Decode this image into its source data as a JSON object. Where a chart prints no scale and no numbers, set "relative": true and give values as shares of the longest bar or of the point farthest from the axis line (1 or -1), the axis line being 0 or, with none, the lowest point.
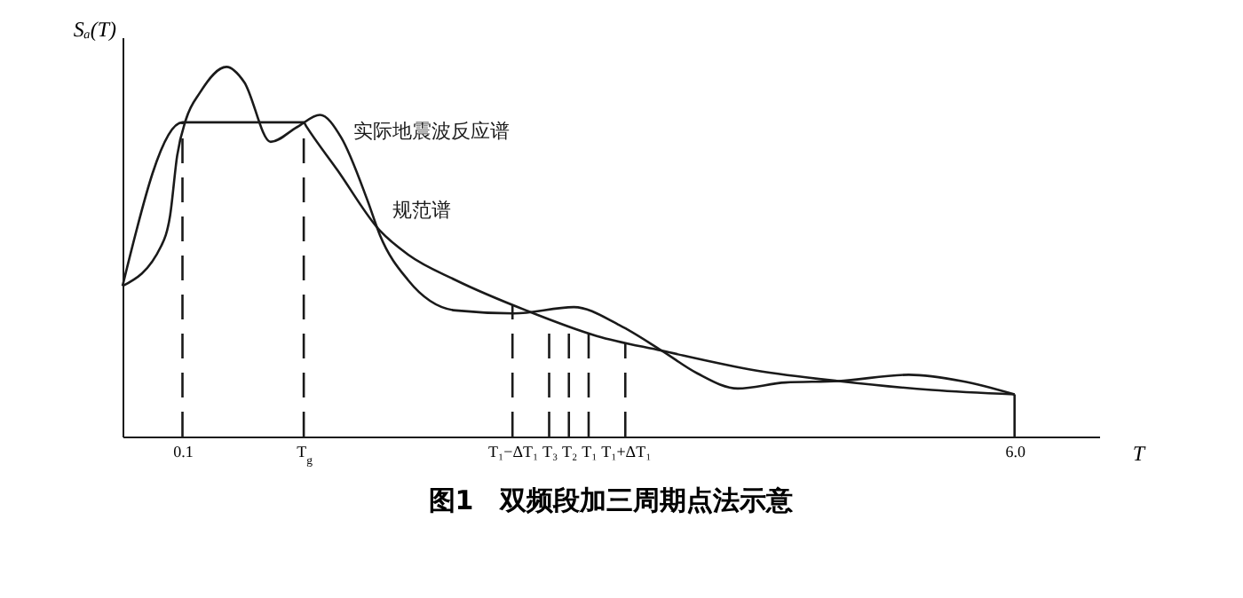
{
  "chart_data": {
    "type": "line",
    "title": "图1　双频段加三周期点法示意",
    "xlabel": "T",
    "ylabel": "Sₐ(T)",
    "relative": true,
    "grid": false,
    "marker": "none",
    "line_style": "solid",
    "xlim": [
      -0.325,
      6.6
    ],
    "xticks": [
      {
        "value": 0.1,
        "label": "0.1"
      },
      {
        "value": 0.96,
        "label": "T$_{g}$"
      },
      {
        "value": 2.44,
        "label": "T₁−ΔT₁"
      },
      {
        "value": 2.7,
        "label": "T₃"
      },
      {
        "value": 2.84,
        "label": "T₂"
      },
      {
        "value": 2.98,
        "label": "T₁"
      },
      {
        "value": 3.24,
        "label": "T₁+ΔT₁"
      },
      {
        "value": 6.0,
        "label": "6.0"
      }
    ],
    "series": [
      {
        "name": "实际地震波反应谱",
        "color": "#1a1a1a",
        "x": [
          -0.325,
          -0.05,
          0.0125,
          0.0625,
          0.125,
          0.225,
          0.4125,
          0.5375,
          0.725,
          0.9125,
          1.075,
          1.225,
          1.4125,
          1.5,
          1.7,
          2.0375,
          2.45,
          2.875,
          3.2,
          3.5,
          3.75,
          4.0375,
          4.375,
          4.75,
          5.25,
          5.625,
          6.0
        ],
        "values": [
          0.407,
          0.516,
          0.598,
          0.76,
          0.858,
          0.931,
          1,
          0.959,
          0.797,
          0.837,
          0.87,
          0.809,
          0.638,
          0.545,
          0.423,
          0.341,
          0.333,
          0.35,
          0.301,
          0.232,
          0.171,
          0.13,
          0.146,
          0.15,
          0.167,
          0.15,
          0.114
        ]
      },
      {
        "name": "规范谱",
        "color": "#1a1a1a",
        "x": [
          -0.325,
          0.1,
          0.96,
          0.975,
          1.2,
          1.5,
          1.7,
          2.0375,
          2.5375,
          3.0375,
          3.5,
          4.1625,
          4.75,
          5.4125,
          6.0
        ],
        "values": [
          0.407,
          0.85,
          0.85,
          0.841,
          0.72,
          0.557,
          0.492,
          0.423,
          0.341,
          0.272,
          0.232,
          0.179,
          0.15,
          0.126,
          0.114
        ]
      }
    ],
    "ref_lines": [
      {
        "axis": "x",
        "value": 0.1,
        "label": null,
        "line_style": "dashed"
      },
      {
        "axis": "x",
        "value": 0.96,
        "label": null,
        "line_style": "dashed"
      },
      {
        "axis": "x",
        "value": 2.44,
        "label": null,
        "line_style": "dashed"
      },
      {
        "axis": "x",
        "value": 2.7,
        "label": null,
        "line_style": "dashed"
      },
      {
        "axis": "x",
        "value": 2.84,
        "label": null,
        "line_style": "dashed"
      },
      {
        "axis": "x",
        "value": 2.98,
        "label": null,
        "line_style": "dashed"
      },
      {
        "axis": "x",
        "value": 3.24,
        "label": null,
        "line_style": "dashed"
      },
      {
        "axis": "x",
        "value": 6.0,
        "label": null,
        "line_style": "solid"
      }
    ]
  }
}
